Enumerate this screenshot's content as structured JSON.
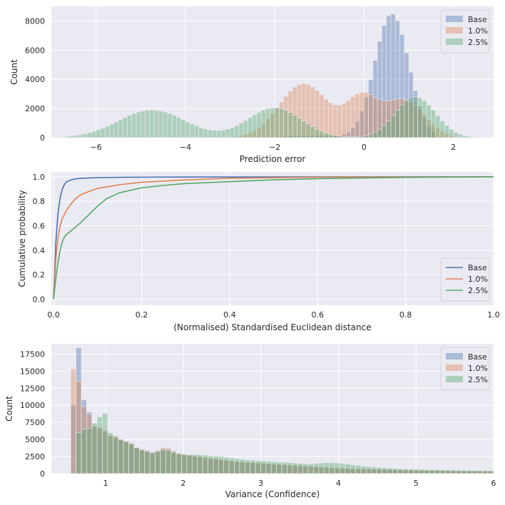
{
  "chart_data": [
    {
      "type": "histogram",
      "xlabel": "Prediction error",
      "ylabel": "Count",
      "xlim": [
        -7.0,
        2.9
      ],
      "ylim": [
        0,
        9000
      ],
      "xticks": [
        -6,
        -4,
        -2,
        0,
        2
      ],
      "xticklabels": [
        "−6",
        "−4",
        "−2",
        "0",
        "2"
      ],
      "yticks": [
        0,
        2000,
        4000,
        6000,
        8000
      ],
      "yticklabels": [
        "0",
        "2000",
        "4000",
        "6000",
        "8000"
      ],
      "legend_position": "top-right",
      "series": [
        {
          "name": "Base",
          "color": "#4c72b0",
          "components": [
            {
              "mu": 0.62,
              "sigma": 0.38,
              "peak": 8500
            },
            {
              "mu": -1.2,
              "sigma": 0.6,
              "peak": 150
            }
          ],
          "range": [
            -2.5,
            1.6
          ]
        },
        {
          "name": "1.0%",
          "color": "#dd8452",
          "components": [
            {
              "mu": -1.35,
              "sigma": 0.55,
              "peak": 3700
            },
            {
              "mu": -0.05,
              "sigma": 0.35,
              "peak": 2600
            },
            {
              "mu": 0.9,
              "sigma": 0.45,
              "peak": 2600
            }
          ],
          "range": [
            -4.0,
            2.0
          ]
        },
        {
          "name": "2.5%",
          "color": "#55a868",
          "components": [
            {
              "mu": -4.75,
              "sigma": 0.75,
              "peak": 1900
            },
            {
              "mu": -2.0,
              "sigma": 0.6,
              "peak": 2050
            },
            {
              "mu": 1.15,
              "sigma": 0.45,
              "peak": 2800
            }
          ],
          "range": [
            -7.0,
            2.9
          ]
        }
      ]
    },
    {
      "type": "line",
      "xlabel": "(Normalised) Standardised Euclidean distance",
      "ylabel": "Cumulative probability",
      "xlim": [
        -0.005,
        1.0
      ],
      "ylim": [
        -0.05,
        1.04
      ],
      "xticks": [
        0.0,
        0.2,
        0.4,
        0.6,
        0.8,
        1.0
      ],
      "xticklabels": [
        "0.0",
        "0.2",
        "0.4",
        "0.6",
        "0.8",
        "1.0"
      ],
      "yticks": [
        0.0,
        0.2,
        0.4,
        0.6,
        0.8,
        1.0
      ],
      "yticklabels": [
        "0.0",
        "0.2",
        "0.4",
        "0.6",
        "0.8",
        "1.0"
      ],
      "legend_position": "bottom-right",
      "series": [
        {
          "name": "Base",
          "color": "#4c72b0",
          "x": [
            0,
            0.005,
            0.01,
            0.015,
            0.02,
            0.025,
            0.03,
            0.04,
            0.05,
            0.06,
            0.08,
            0.1,
            0.15,
            0.2,
            0.3,
            0.5,
            1.0
          ],
          "y": [
            0,
            0.45,
            0.7,
            0.83,
            0.9,
            0.94,
            0.96,
            0.975,
            0.983,
            0.987,
            0.991,
            0.993,
            0.996,
            0.997,
            0.998,
            0.999,
            1.0
          ]
        },
        {
          "name": "1.0%",
          "color": "#dd8452",
          "x": [
            0,
            0.005,
            0.01,
            0.015,
            0.02,
            0.03,
            0.04,
            0.05,
            0.06,
            0.08,
            0.1,
            0.15,
            0.2,
            0.3,
            0.4,
            0.6,
            1.0
          ],
          "y": [
            0,
            0.32,
            0.5,
            0.6,
            0.66,
            0.73,
            0.78,
            0.82,
            0.85,
            0.88,
            0.905,
            0.935,
            0.955,
            0.975,
            0.988,
            0.997,
            1.0
          ]
        },
        {
          "name": "2.5%",
          "color": "#55a868",
          "x": [
            0,
            0.005,
            0.01,
            0.015,
            0.02,
            0.025,
            0.03,
            0.04,
            0.05,
            0.06,
            0.08,
            0.1,
            0.12,
            0.15,
            0.2,
            0.25,
            0.3,
            0.4,
            0.5,
            0.6,
            0.8,
            1.0
          ],
          "y": [
            0,
            0.16,
            0.3,
            0.4,
            0.47,
            0.51,
            0.53,
            0.56,
            0.59,
            0.62,
            0.69,
            0.76,
            0.82,
            0.87,
            0.91,
            0.93,
            0.945,
            0.96,
            0.975,
            0.985,
            0.995,
            1.0
          ]
        }
      ]
    },
    {
      "type": "histogram",
      "xlabel": "Variance (Confidence)",
      "ylabel": "Count",
      "xlim": [
        0.3,
        6.0
      ],
      "ylim": [
        0,
        19000
      ],
      "xticks": [
        1,
        2,
        3,
        4,
        5,
        6
      ],
      "xticklabels": [
        "1",
        "2",
        "3",
        "4",
        "5",
        "6"
      ],
      "yticks": [
        0,
        2500,
        5000,
        7500,
        10000,
        12500,
        15000,
        17500
      ],
      "yticklabels": [
        "0",
        "2500",
        "5000",
        "7500",
        "10000",
        "12500",
        "15000",
        "17500"
      ],
      "legend_position": "top-right",
      "bin_edges_start": 0.55,
      "bin_width": 0.068,
      "series": [
        {
          "name": "Base",
          "color": "#4c72b0",
          "values": [
            10000,
            18400,
            10800,
            9000,
            7000,
            6800,
            6200,
            5500,
            5200,
            4900,
            4600,
            4300,
            3700,
            3400,
            3200,
            3000,
            3200,
            3600,
            3600,
            3300,
            2900,
            2700,
            2600,
            2500,
            2400,
            2300,
            2200,
            2100,
            2000,
            1900,
            1800,
            1700,
            1650,
            1600,
            1550,
            1500,
            1450,
            1400,
            1350,
            1300,
            1250,
            1200,
            1150,
            1100,
            1050,
            1000,
            950,
            900,
            860,
            820,
            780,
            750,
            720,
            700,
            680,
            660,
            640,
            620,
            600,
            580,
            560,
            540,
            520,
            500,
            490,
            480,
            470,
            460,
            450,
            440,
            430,
            420,
            410,
            400,
            390,
            380,
            370,
            360,
            350,
            340,
            330
          ]
        },
        {
          "name": "1.0%",
          "color": "#dd8452",
          "values": [
            15300,
            13500,
            9800,
            8700,
            6900,
            6700,
            6300,
            5600,
            5400,
            5100,
            4800,
            4500,
            3900,
            3600,
            3400,
            3200,
            3400,
            3800,
            3700,
            3300,
            3000,
            2800,
            2700,
            2600,
            2500,
            2400,
            2300,
            2200,
            2100,
            2000,
            1900,
            1800,
            1750,
            1700,
            1650,
            1600,
            1550,
            1500,
            1450,
            1400,
            1350,
            1300,
            1250,
            1200,
            1150,
            1100,
            1050,
            1000,
            950,
            900,
            860,
            820,
            790,
            760,
            730,
            700,
            680,
            660,
            640,
            620,
            600,
            580,
            560,
            540,
            520,
            500,
            490,
            480,
            470,
            460,
            450,
            440,
            430,
            420,
            410,
            400,
            390,
            380,
            370,
            360,
            350
          ]
        },
        {
          "name": "2.5%",
          "color": "#55a868",
          "values": [
            0,
            6000,
            6500,
            6600,
            7400,
            8300,
            8800,
            6000,
            5500,
            5000,
            4700,
            4400,
            3800,
            3500,
            3300,
            3100,
            3300,
            3500,
            3400,
            3100,
            2900,
            2850,
            2800,
            2800,
            2750,
            2700,
            2600,
            2550,
            2500,
            2400,
            2300,
            2200,
            2100,
            2000,
            1950,
            1900,
            1850,
            1800,
            1750,
            1700,
            1650,
            1600,
            1550,
            1500,
            1450,
            1400,
            1500,
            1550,
            1600,
            1600,
            1550,
            1500,
            1400,
            1300,
            1200,
            1100,
            1000,
            950,
            900,
            850,
            800,
            760,
            720,
            690,
            660,
            640,
            620,
            600,
            580,
            560,
            540,
            520,
            500,
            490,
            480,
            470,
            460,
            450,
            440,
            430,
            420
          ]
        }
      ]
    }
  ]
}
